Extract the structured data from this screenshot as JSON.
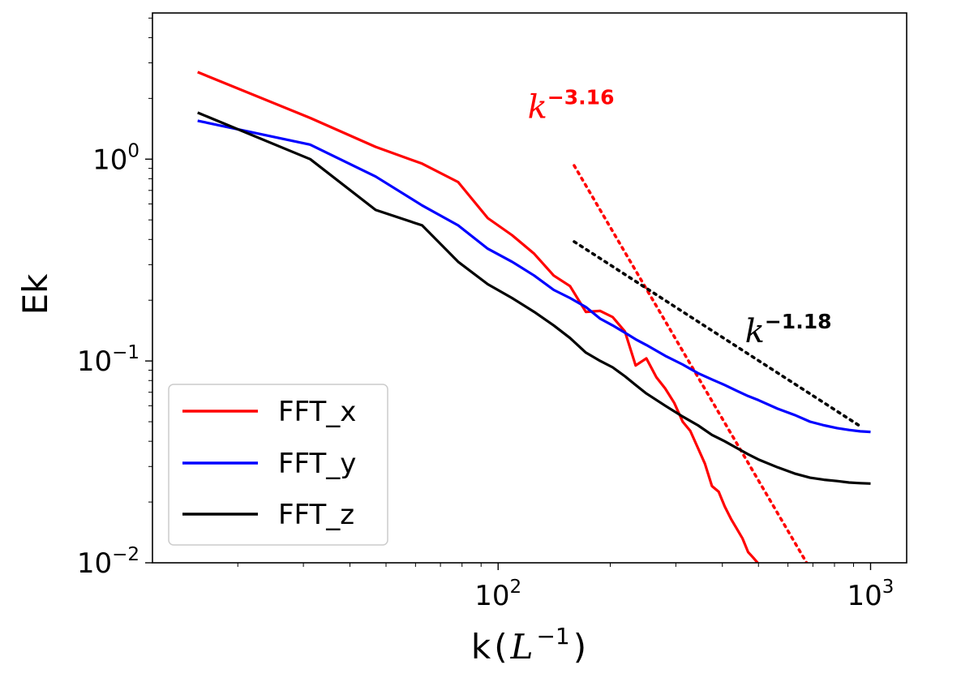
{
  "chart_data": {
    "type": "line",
    "title": "",
    "xlabel": "k",
    "xlabel_unit": "L",
    "xlabel_unit_exp": "−1",
    "ylabel": "Ek",
    "xscale": "log",
    "yscale": "log",
    "xlim": [
      11.8,
      1250
    ],
    "ylim": [
      0.01,
      5.3
    ],
    "xticks": [
      {
        "value": 100,
        "base": "10",
        "exp": "2"
      },
      {
        "value": 1000,
        "base": "10",
        "exp": "3"
      }
    ],
    "yticks": [
      {
        "value": 0.01,
        "base": "10",
        "exp": "−2"
      },
      {
        "value": 0.1,
        "base": "10",
        "exp": "−1"
      },
      {
        "value": 1,
        "base": "10",
        "exp": "0"
      }
    ],
    "legend_position": "lower-left",
    "series": [
      {
        "name": "FFT_x",
        "color": "#ff0000",
        "x": [
          15.6,
          31.3,
          46.9,
          62.5,
          78.1,
          93.8,
          109,
          125,
          141,
          156,
          172,
          188,
          203,
          219,
          234,
          250,
          266,
          281,
          297,
          313,
          328,
          344,
          359,
          375,
          391,
          406,
          422,
          438,
          453,
          469,
          484,
          500
        ],
        "y": [
          2.7,
          1.6,
          1.15,
          0.95,
          0.77,
          0.51,
          0.42,
          0.34,
          0.265,
          0.235,
          0.175,
          0.177,
          0.165,
          0.14,
          0.095,
          0.103,
          0.083,
          0.073,
          0.062,
          0.05,
          0.045,
          0.037,
          0.031,
          0.024,
          0.0225,
          0.019,
          0.0165,
          0.0147,
          0.0132,
          0.0113,
          0.0106,
          0.0099
        ]
      },
      {
        "name": "FFT_y",
        "color": "#0000ff",
        "x": [
          15.6,
          31.3,
          46.9,
          62.5,
          78.1,
          93.8,
          109,
          125,
          141,
          156,
          172,
          188,
          203,
          219,
          234,
          250,
          281,
          313,
          344,
          375,
          406,
          438,
          469,
          500,
          563,
          625,
          688,
          750,
          813,
          875,
          938,
          1000
        ],
        "y": [
          1.55,
          1.18,
          0.82,
          0.59,
          0.47,
          0.36,
          0.31,
          0.265,
          0.225,
          0.205,
          0.185,
          0.162,
          0.15,
          0.138,
          0.128,
          0.12,
          0.106,
          0.096,
          0.087,
          0.081,
          0.076,
          0.071,
          0.067,
          0.064,
          0.058,
          0.054,
          0.05,
          0.048,
          0.0465,
          0.0455,
          0.0448,
          0.0445
        ]
      },
      {
        "name": "FFT_z",
        "color": "#000000",
        "x": [
          15.6,
          31.3,
          46.9,
          62.5,
          78.1,
          93.8,
          109,
          125,
          141,
          156,
          172,
          188,
          203,
          219,
          234,
          250,
          281,
          313,
          344,
          375,
          406,
          438,
          469,
          500,
          563,
          625,
          688,
          750,
          813,
          875,
          938,
          1000
        ],
        "y": [
          1.7,
          1.0,
          0.56,
          0.47,
          0.31,
          0.24,
          0.205,
          0.175,
          0.15,
          0.13,
          0.11,
          0.1,
          0.093,
          0.084,
          0.076,
          0.069,
          0.06,
          0.053,
          0.048,
          0.043,
          0.04,
          0.037,
          0.0345,
          0.0325,
          0.0297,
          0.0277,
          0.0264,
          0.0258,
          0.0254,
          0.025,
          0.0248,
          0.0247
        ]
      }
    ],
    "fit_lines": [
      {
        "name": "k^-3.16 fit",
        "color": "#ff0000",
        "x": [
          160,
          680
        ],
        "y": [
          0.93,
          0.0097
        ]
      },
      {
        "name": "k^-1.18 fit",
        "color": "#000000",
        "x": [
          160,
          930
        ],
        "y": [
          0.39,
          0.048
        ]
      }
    ],
    "annotations": [
      {
        "base": "k",
        "exp": "−3.16",
        "color": "#ff0000",
        "x": 120,
        "y": 1.6
      },
      {
        "base": "k",
        "exp": "−1.18",
        "color": "#000000",
        "x": 460,
        "y": 0.124
      }
    ]
  }
}
